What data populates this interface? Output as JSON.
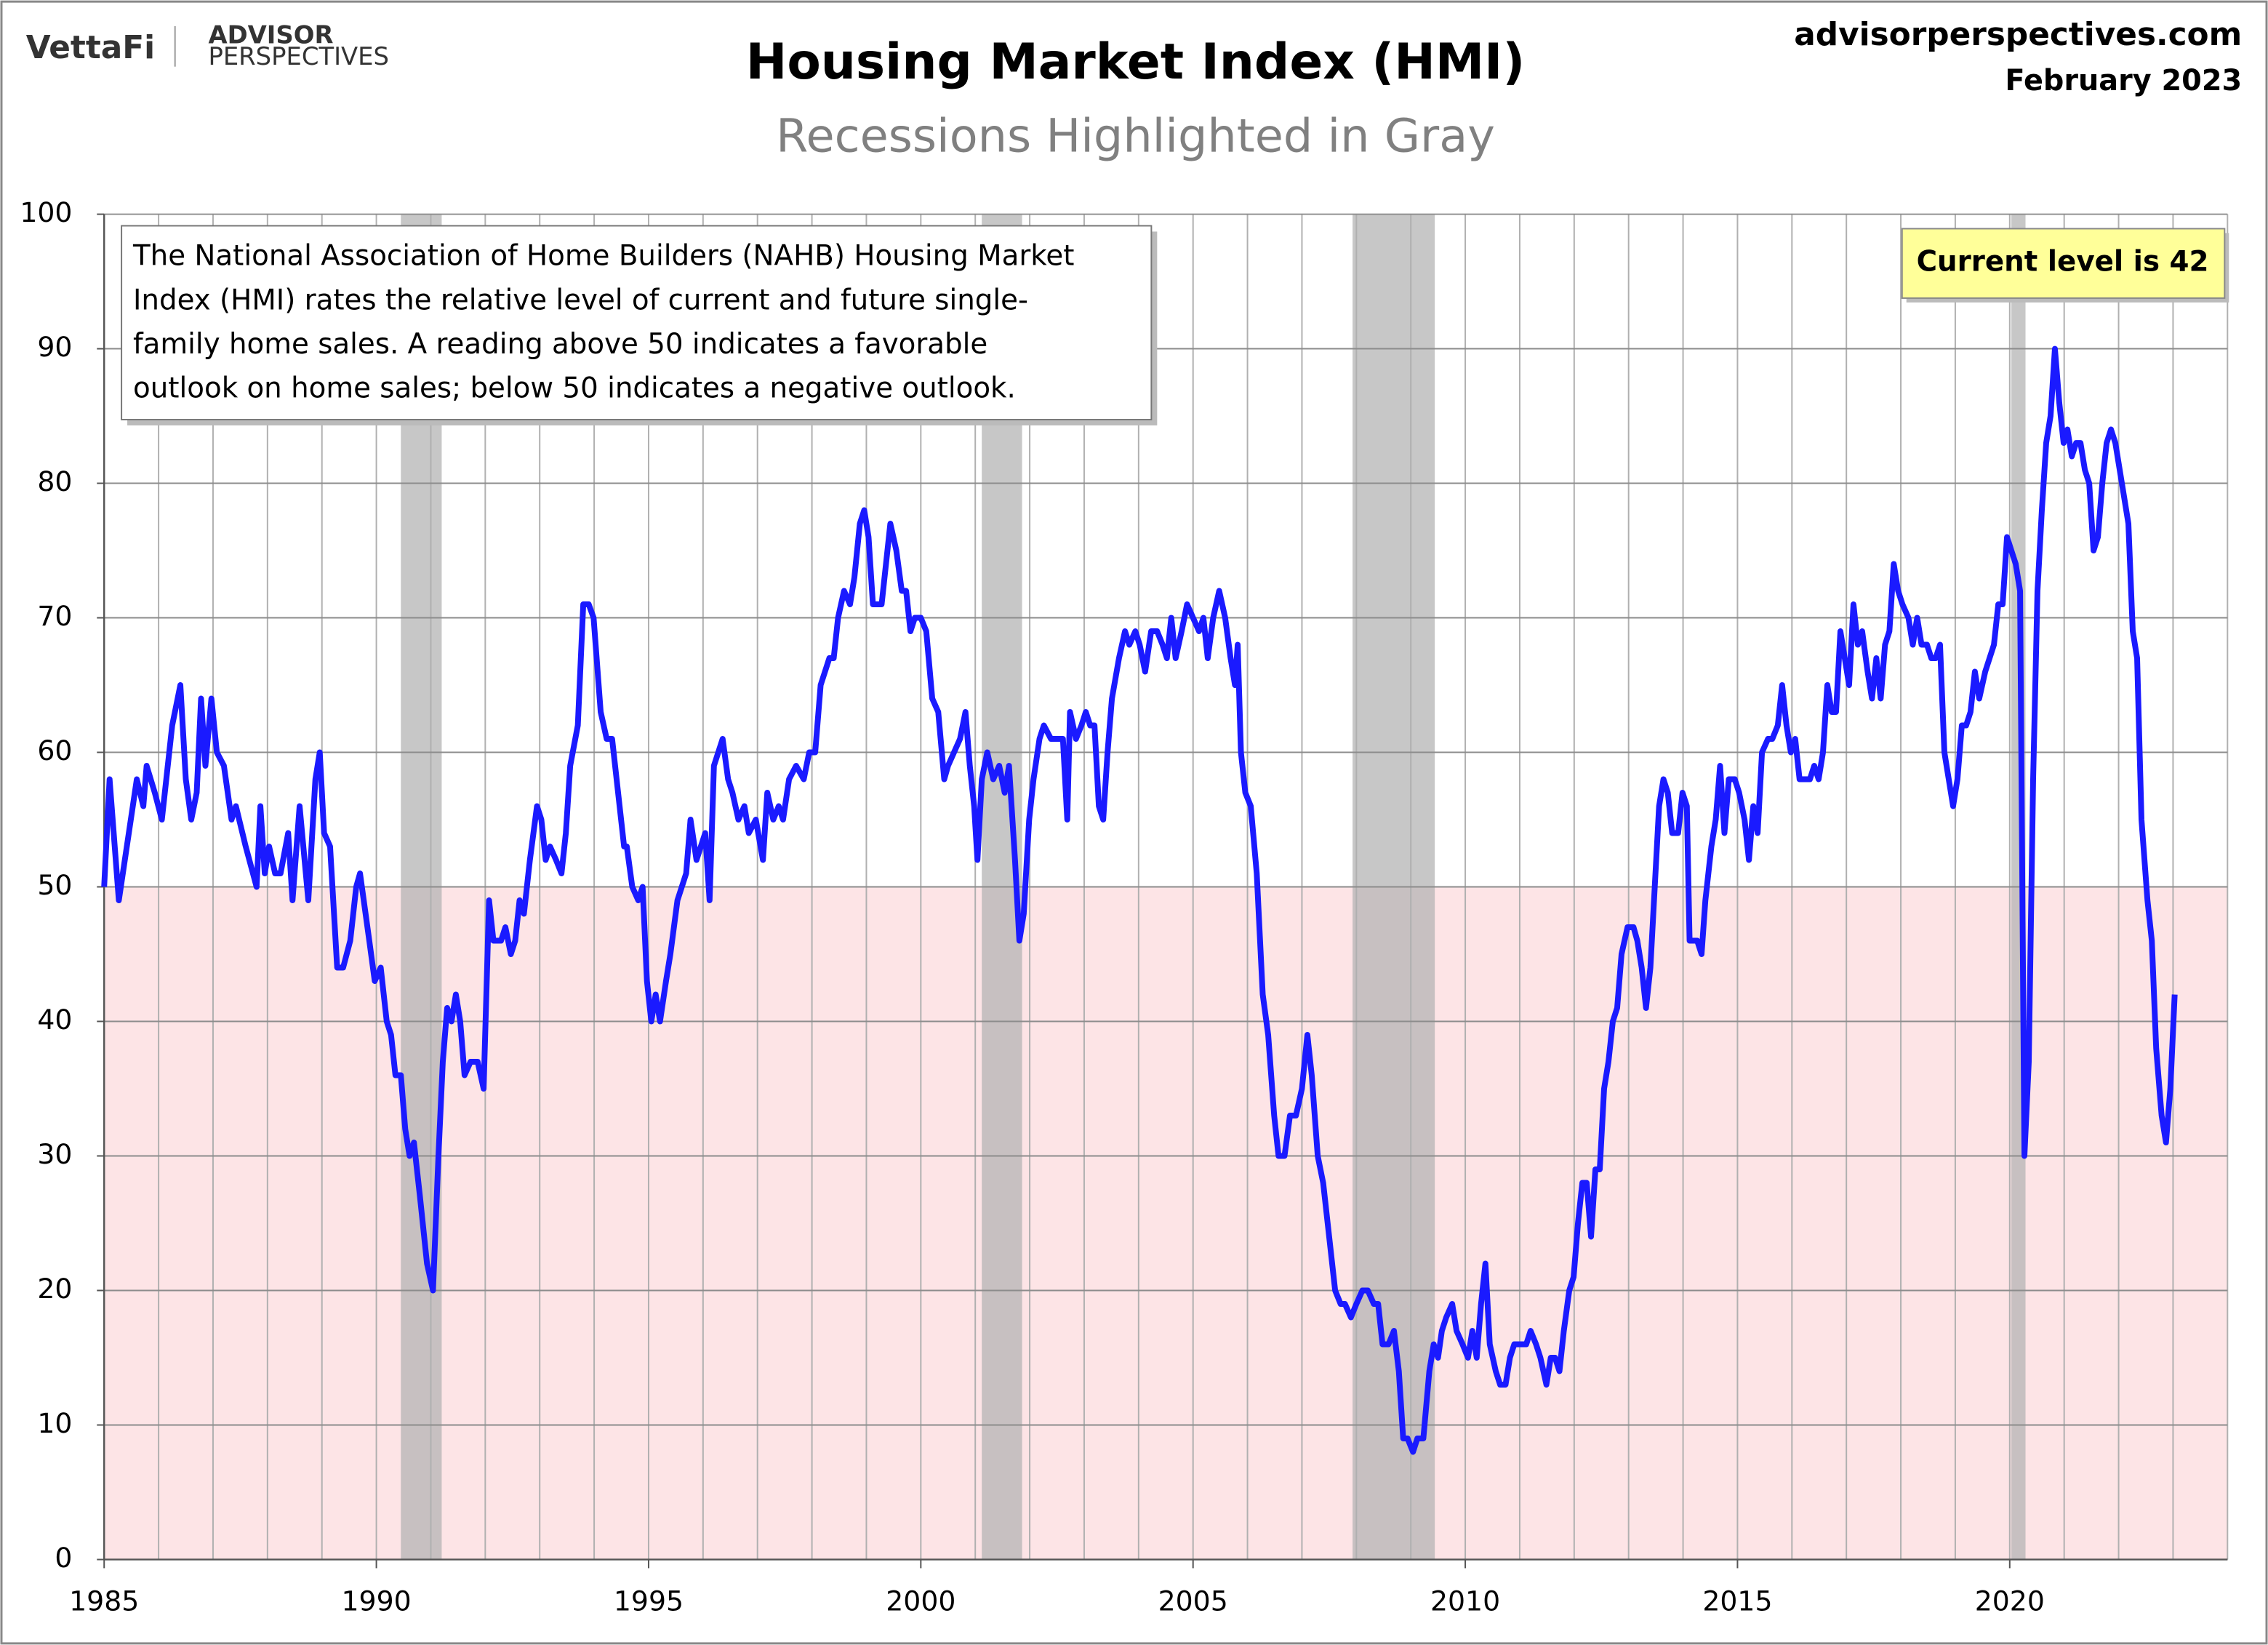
{
  "logo": {
    "brand": "VettaFi",
    "line1": "ADVISOR",
    "line2": "PERSPECTIVES"
  },
  "source": "advisorperspectives.com",
  "date": "February 2023",
  "chart_data": {
    "type": "line",
    "title": "Housing Market Index (HMI)",
    "subtitle": "Recessions Highlighted in Gray",
    "annotation": [
      "The National Association of Home Builders (NAHB) Housing Market",
      "Index (HMI) rates the relative level of current and future single-",
      "family home sales. A reading above 50 indicates a favorable",
      "outlook on home sales; below 50 indicates a negative outlook."
    ],
    "callout": "Current level is 42",
    "callout_color": "#ffff99",
    "xlim": [
      1985,
      2024
    ],
    "xticks": [
      1985,
      1990,
      1995,
      2000,
      2005,
      2010,
      2015,
      2020
    ],
    "x_minor_step": 1,
    "ylim": [
      0,
      100
    ],
    "yticks": [
      0,
      10,
      20,
      30,
      40,
      50,
      60,
      70,
      80,
      90,
      100
    ],
    "grid": true,
    "recessions": [
      [
        1990.45,
        1991.2
      ],
      [
        2001.12,
        2001.86
      ],
      [
        2007.93,
        2009.44
      ],
      [
        2020.03,
        2020.29
      ]
    ],
    "recession_color": "#b4b4b4",
    "shade_below": 50,
    "shade_color": "#fde4e6",
    "x": [
      1985.0,
      1985.1,
      1985.27,
      1985.6,
      1985.72,
      1985.78,
      1985.93,
      1986.06,
      1986.25,
      1986.4,
      1986.5,
      1986.6,
      1986.7,
      1986.78,
      1986.86,
      1986.97,
      1987.07,
      1987.2,
      1987.34,
      1987.42,
      1987.6,
      1987.8,
      1987.87,
      1987.95,
      1988.03,
      1988.14,
      1988.24,
      1988.38,
      1988.46,
      1988.59,
      1988.75,
      1988.88,
      1988.96,
      1989.04,
      1989.15,
      1989.28,
      1989.39,
      1989.52,
      1989.63,
      1989.7,
      1989.87,
      1989.97,
      1990.08,
      1990.19,
      1990.27,
      1990.35,
      1990.45,
      1990.53,
      1990.61,
      1990.69,
      1990.8,
      1990.93,
      1991.04,
      1991.14,
      1991.22,
      1991.3,
      1991.38,
      1991.46,
      1991.54,
      1991.62,
      1991.73,
      1991.86,
      1991.97,
      1992.07,
      1992.15,
      1992.29,
      1992.37,
      1992.47,
      1992.55,
      1992.63,
      1992.71,
      1992.82,
      1992.95,
      1993.03,
      1993.11,
      1993.19,
      1993.3,
      1993.4,
      1993.48,
      1993.56,
      1993.7,
      1993.8,
      1993.9,
      1993.99,
      1994.12,
      1994.23,
      1994.33,
      1994.44,
      1994.55,
      1994.6,
      1994.7,
      1994.81,
      1994.89,
      1994.97,
      1995.05,
      1995.13,
      1995.21,
      1995.32,
      1995.4,
      1995.53,
      1995.69,
      1995.77,
      1995.88,
      1996.04,
      1996.12,
      1996.2,
      1996.36,
      1996.46,
      1996.54,
      1996.65,
      1996.76,
      1996.84,
      1996.97,
      1997.1,
      1997.18,
      1997.29,
      1997.39,
      1997.47,
      1997.58,
      1997.71,
      1997.85,
      1997.95,
      1998.06,
      1998.16,
      1998.24,
      1998.32,
      1998.4,
      1998.48,
      1998.59,
      1998.7,
      1998.78,
      1998.88,
      1998.96,
      1999.04,
      1999.12,
      1999.28,
      1999.36,
      1999.44,
      1999.55,
      1999.65,
      1999.73,
      1999.81,
      1999.89,
      2000.0,
      2000.1,
      2000.21,
      2000.32,
      2000.43,
      2000.5,
      2000.61,
      2000.72,
      2000.82,
      2000.9,
      2000.98,
      2001.04,
      2001.12,
      2001.22,
      2001.33,
      2001.44,
      2001.54,
      2001.62,
      2001.73,
      2001.81,
      2001.89,
      2001.99,
      2002.07,
      2002.18,
      2002.26,
      2002.39,
      2002.5,
      2002.61,
      2002.69,
      2002.74,
      2002.85,
      2002.95,
      2003.03,
      2003.11,
      2003.19,
      2003.27,
      2003.35,
      2003.43,
      2003.51,
      2003.64,
      2003.75,
      2003.83,
      2003.94,
      2004.02,
      2004.12,
      2004.23,
      2004.34,
      2004.44,
      2004.52,
      2004.6,
      2004.68,
      2004.79,
      2004.89,
      2005.0,
      2005.11,
      2005.19,
      2005.27,
      2005.37,
      2005.48,
      2005.59,
      2005.69,
      2005.77,
      2005.82,
      2005.88,
      2005.96,
      2006.06,
      2006.17,
      2006.28,
      2006.38,
      2006.49,
      2006.57,
      2006.68,
      2006.78,
      2006.89,
      2007.0,
      2007.1,
      2007.18,
      2007.29,
      2007.39,
      2007.5,
      2007.61,
      2007.71,
      2007.79,
      2007.9,
      2008.0,
      2008.11,
      2008.21,
      2008.32,
      2008.4,
      2008.48,
      2008.59,
      2008.69,
      2008.78,
      2008.86,
      2008.94,
      2009.04,
      2009.12,
      2009.23,
      2009.34,
      2009.42,
      2009.5,
      2009.57,
      2009.65,
      2009.76,
      2009.84,
      2009.95,
      2010.05,
      2010.13,
      2010.21,
      2010.29,
      2010.37,
      2010.45,
      2010.56,
      2010.64,
      2010.74,
      2010.82,
      2010.9,
      2011.01,
      2011.12,
      2011.2,
      2011.3,
      2011.38,
      2011.49,
      2011.57,
      2011.65,
      2011.73,
      2011.81,
      2011.91,
      2011.99,
      2012.07,
      2012.15,
      2012.23,
      2012.31,
      2012.39,
      2012.47,
      2012.55,
      2012.63,
      2012.71,
      2012.79,
      2012.87,
      2012.98,
      2013.09,
      2013.16,
      2013.24,
      2013.32,
      2013.4,
      2013.48,
      2013.56,
      2013.64,
      2013.72,
      2013.8,
      2013.91,
      2013.99,
      2014.07,
      2014.12,
      2014.26,
      2014.34,
      2014.41,
      2014.52,
      2014.6,
      2014.68,
      2014.76,
      2014.84,
      2014.95,
      2015.03,
      2015.13,
      2015.21,
      2015.29,
      2015.37,
      2015.45,
      2015.56,
      2015.64,
      2015.74,
      2015.82,
      2015.9,
      2015.98,
      2016.06,
      2016.14,
      2016.25,
      2016.33,
      2016.41,
      2016.49,
      2016.57,
      2016.65,
      2016.73,
      2016.81,
      2016.89,
      2016.97,
      2017.05,
      2017.13,
      2017.21,
      2017.29,
      2017.39,
      2017.47,
      2017.55,
      2017.63,
      2017.71,
      2017.79,
      2017.87,
      2017.95,
      2018.03,
      2018.14,
      2018.22,
      2018.3,
      2018.38,
      2018.48,
      2018.56,
      2018.64,
      2018.72,
      2018.8,
      2018.88,
      2018.96,
      2019.04,
      2019.12,
      2019.2,
      2019.28,
      2019.36,
      2019.44,
      2019.55,
      2019.63,
      2019.71,
      2019.79,
      2019.87,
      2019.95,
      2020.03,
      2020.11,
      2020.19,
      2020.27,
      2020.35,
      2020.43,
      2020.51,
      2020.59,
      2020.67,
      2020.75,
      2020.83,
      2020.91,
      2020.99,
      2021.06,
      2021.14,
      2021.22,
      2021.3,
      2021.38,
      2021.46,
      2021.54,
      2021.62,
      2021.7,
      2021.78,
      2021.86,
      2021.94,
      2022.02,
      2022.1,
      2022.18,
      2022.26,
      2022.34,
      2022.42,
      2022.53,
      2022.61,
      2022.69,
      2022.79,
      2022.87,
      2022.95,
      2023.03
    ],
    "series": [
      {
        "name": "HMI",
        "color": "#1a1aff",
        "values": [
          50,
          58,
          49,
          58,
          56,
          59,
          57,
          55,
          62,
          65,
          58,
          55,
          57,
          64,
          59,
          64,
          60,
          59,
          55,
          56,
          53,
          50,
          56,
          51,
          53,
          51,
          51,
          54,
          49,
          56,
          49,
          58,
          60,
          54,
          53,
          44,
          44,
          46,
          50,
          51,
          46,
          43,
          44,
          40,
          39,
          36,
          36,
          32,
          30,
          31,
          27,
          22,
          20,
          30,
          37,
          41,
          40,
          42,
          40,
          36,
          37,
          37,
          35,
          49,
          46,
          46,
          47,
          45,
          46,
          49,
          48,
          52,
          56,
          55,
          52,
          53,
          52,
          51,
          54,
          59,
          62,
          71,
          71,
          70,
          63,
          61,
          61,
          57,
          53,
          53,
          50,
          49,
          50,
          43,
          40,
          42,
          40,
          43,
          45,
          49,
          51,
          55,
          52,
          54,
          49,
          59,
          61,
          58,
          57,
          55,
          56,
          54,
          55,
          52,
          57,
          55,
          56,
          55,
          58,
          59,
          58,
          60,
          60,
          65,
          66,
          67,
          67,
          70,
          72,
          71,
          73,
          77,
          78,
          76,
          71,
          71,
          74,
          77,
          75,
          72,
          72,
          69,
          70,
          70,
          69,
          64,
          63,
          58,
          59,
          60,
          61,
          63,
          59,
          56,
          52,
          58,
          60,
          58,
          59,
          57,
          59,
          52,
          46,
          48,
          55,
          58,
          61,
          62,
          61,
          61,
          61,
          55,
          63,
          61,
          62,
          63,
          62,
          62,
          56,
          55,
          60,
          64,
          67,
          69,
          68,
          69,
          68,
          66,
          69,
          69,
          68,
          67,
          70,
          67,
          69,
          71,
          70,
          69,
          70,
          67,
          70,
          72,
          70,
          67,
          65,
          68,
          60,
          57,
          56,
          51,
          42,
          39,
          33,
          30,
          30,
          33,
          33,
          35,
          39,
          36,
          30,
          28,
          24,
          20,
          19,
          19,
          18,
          19,
          20,
          20,
          19,
          19,
          16,
          16,
          17,
          14,
          9,
          9,
          8,
          9,
          9,
          14,
          16,
          15,
          17,
          18,
          19,
          17,
          16,
          15,
          17,
          15,
          19,
          22,
          16,
          14,
          13,
          13,
          15,
          16,
          16,
          16,
          17,
          16,
          15,
          13,
          15,
          15,
          14,
          17,
          20,
          21,
          25,
          28,
          28,
          24,
          29,
          29,
          35,
          37,
          40,
          41,
          45,
          47,
          47,
          46,
          44,
          41,
          44,
          50,
          56,
          58,
          57,
          54,
          54,
          57,
          56,
          46,
          46,
          45,
          49,
          53,
          55,
          59,
          54,
          58,
          58,
          57,
          55,
          52,
          56,
          54,
          60,
          61,
          61,
          62,
          65,
          62,
          60,
          61,
          58,
          58,
          58,
          59,
          58,
          60,
          65,
          63,
          63,
          69,
          67,
          65,
          71,
          68,
          69,
          66,
          64,
          67,
          64,
          68,
          69,
          74,
          72,
          71,
          70,
          68,
          70,
          68,
          68,
          67,
          67,
          68,
          60,
          58,
          56,
          58,
          62,
          62,
          63,
          66,
          64,
          66,
          67,
          68,
          71,
          71,
          76,
          75,
          74,
          72,
          30,
          37,
          58,
          72,
          78,
          83,
          85,
          90,
          86,
          83,
          84,
          82,
          83,
          83,
          81,
          80,
          75,
          76,
          80,
          83,
          84,
          83,
          81,
          79,
          77,
          69,
          67,
          55,
          49,
          46,
          38,
          33,
          31,
          35,
          42
        ]
      }
    ]
  }
}
